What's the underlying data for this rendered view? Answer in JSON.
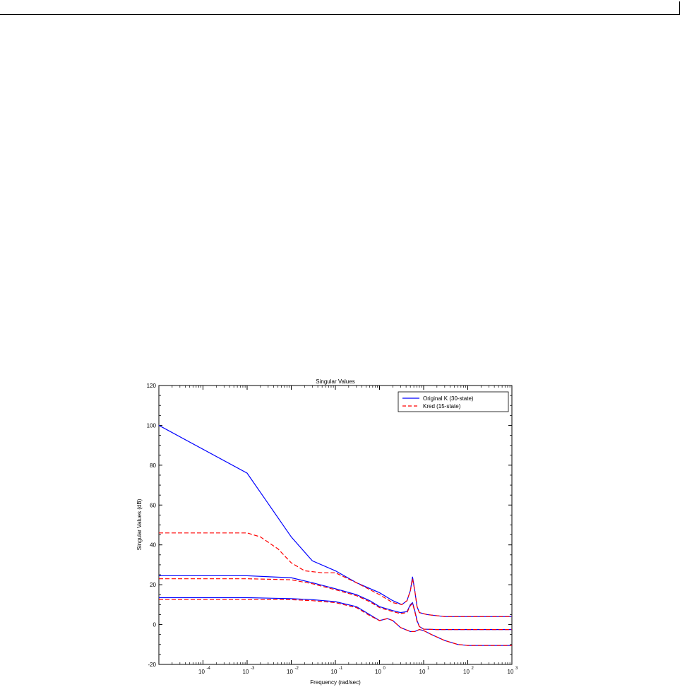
{
  "chart_data": {
    "type": "line",
    "title": "Singular Values",
    "xlabel": "Frequency (rad/sec)",
    "ylabel": "Singular Values (dB)",
    "xscale": "log",
    "xlim": [
      1e-05,
      1000
    ],
    "ylim": [
      -20,
      120
    ],
    "yticks": [
      "-20",
      "0",
      "20",
      "40",
      "60",
      "80",
      "100",
      "120"
    ],
    "xticks": [
      {
        "base": "10",
        "exp": "-4"
      },
      {
        "base": "10",
        "exp": "-3"
      },
      {
        "base": "10",
        "exp": "-2"
      },
      {
        "base": "10",
        "exp": "-1"
      },
      {
        "base": "10",
        "exp": "0"
      },
      {
        "base": "10",
        "exp": "1"
      },
      {
        "base": "10",
        "exp": "2"
      },
      {
        "base": "10",
        "exp": "3"
      }
    ],
    "grid": false,
    "legend_placement": "top-right",
    "series": [
      {
        "name": "Original K (30-state)",
        "color": "#0000ff",
        "style": "solid",
        "lines": [
          [
            [
              1e-05,
              100
            ],
            [
              0.001,
              76
            ],
            [
              0.01,
              44
            ],
            [
              0.03,
              32
            ],
            [
              0.1,
              27
            ],
            [
              0.3,
              21
            ],
            [
              1,
              16
            ],
            [
              2,
              12
            ],
            [
              3.2,
              10
            ],
            [
              4.2,
              12
            ],
            [
              5.0,
              17
            ],
            [
              5.6,
              24
            ],
            [
              6.3,
              17
            ],
            [
              7.1,
              9
            ],
            [
              8,
              6
            ],
            [
              12,
              5
            ],
            [
              30,
              4
            ],
            [
              1000,
              4
            ]
          ],
          [
            [
              1e-05,
              24.5
            ],
            [
              0.001,
              24.5
            ],
            [
              0.01,
              23.5
            ],
            [
              0.03,
              21
            ],
            [
              0.1,
              18
            ],
            [
              0.3,
              15
            ],
            [
              0.6,
              12
            ],
            [
              1,
              9
            ],
            [
              2,
              7
            ],
            [
              3,
              6
            ],
            [
              4.2,
              6.5
            ],
            [
              5,
              10
            ],
            [
              5.6,
              11
            ],
            [
              6.3,
              7
            ],
            [
              7.1,
              2
            ],
            [
              8,
              -1
            ],
            [
              10,
              -2.3
            ],
            [
              20,
              -2.5
            ],
            [
              1000,
              -2.5
            ]
          ],
          [
            [
              1e-05,
              13.5
            ],
            [
              0.001,
              13.5
            ],
            [
              0.01,
              13
            ],
            [
              0.03,
              12.5
            ],
            [
              0.1,
              11.5
            ],
            [
              0.3,
              9
            ],
            [
              0.6,
              5
            ],
            [
              1,
              2
            ],
            [
              1.5,
              3
            ],
            [
              2,
              2
            ],
            [
              3,
              -1.5
            ],
            [
              5,
              -3.5
            ],
            [
              6.3,
              -3.5
            ],
            [
              8,
              -2.5
            ],
            [
              10,
              -3
            ],
            [
              15,
              -5
            ],
            [
              30,
              -8
            ],
            [
              60,
              -10
            ],
            [
              100,
              -10.5
            ],
            [
              1000,
              -10.5
            ]
          ]
        ]
      },
      {
        "name": "Kred (15-state)",
        "color": "#ff0000",
        "style": "dashed",
        "lines": [
          [
            [
              1e-05,
              46
            ],
            [
              0.001,
              46
            ],
            [
              0.002,
              44
            ],
            [
              0.005,
              38
            ],
            [
              0.01,
              31
            ],
            [
              0.02,
              27
            ],
            [
              0.05,
              26
            ],
            [
              0.1,
              26
            ],
            [
              0.3,
              21
            ],
            [
              1,
              15
            ],
            [
              2,
              11
            ],
            [
              3.2,
              10
            ],
            [
              4.2,
              12
            ],
            [
              5.0,
              17
            ],
            [
              5.6,
              23
            ],
            [
              6.3,
              17
            ],
            [
              7.1,
              9
            ],
            [
              8,
              6
            ],
            [
              12,
              5
            ],
            [
              30,
              4
            ],
            [
              1000,
              4
            ]
          ],
          [
            [
              1e-05,
              23
            ],
            [
              0.001,
              23
            ],
            [
              0.01,
              22.5
            ],
            [
              0.03,
              20.5
            ],
            [
              0.1,
              17.5
            ],
            [
              0.3,
              14.5
            ],
            [
              0.6,
              11.5
            ],
            [
              1,
              8.5
            ],
            [
              2,
              6.5
            ],
            [
              3,
              5.5
            ],
            [
              4.2,
              6
            ],
            [
              5,
              9.5
            ],
            [
              5.6,
              10.5
            ],
            [
              6.3,
              6.5
            ],
            [
              7.1,
              1.5
            ],
            [
              8,
              -1
            ],
            [
              10,
              -2.3
            ],
            [
              20,
              -2.5
            ],
            [
              1000,
              -2.5
            ]
          ],
          [
            [
              1e-05,
              12.5
            ],
            [
              0.001,
              12.5
            ],
            [
              0.01,
              12.5
            ],
            [
              0.03,
              12
            ],
            [
              0.1,
              11
            ],
            [
              0.3,
              8.5
            ],
            [
              0.6,
              4.5
            ],
            [
              1,
              2
            ],
            [
              1.5,
              3
            ],
            [
              2,
              2
            ],
            [
              3,
              -1.5
            ],
            [
              5,
              -3.5
            ],
            [
              6.3,
              -3.5
            ],
            [
              8,
              -2.5
            ],
            [
              10,
              -3
            ],
            [
              15,
              -5
            ],
            [
              30,
              -8
            ],
            [
              60,
              -10
            ],
            [
              100,
              -10.5
            ],
            [
              1000,
              -10.5
            ]
          ]
        ]
      }
    ]
  }
}
